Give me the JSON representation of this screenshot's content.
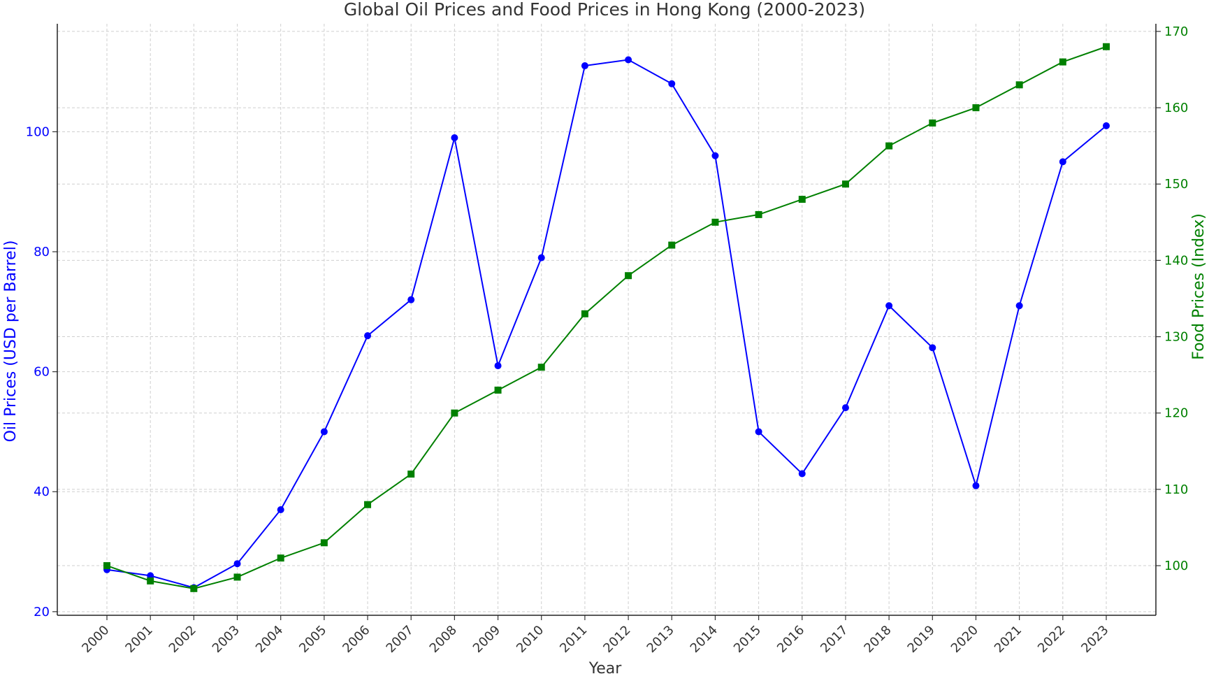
{
  "chart_data": {
    "type": "line",
    "title": "Global Oil Prices and Food Prices in Hong Kong (2000-2023)",
    "xlabel": "Year",
    "ylabel_left": "Oil Prices (USD per Barrel)",
    "ylabel_right": "Food Prices (Index)",
    "categories": [
      "2000",
      "2001",
      "2002",
      "2003",
      "2004",
      "2005",
      "2006",
      "2007",
      "2008",
      "2009",
      "2010",
      "2011",
      "2012",
      "2013",
      "2014",
      "2015",
      "2016",
      "2017",
      "2018",
      "2019",
      "2020",
      "2021",
      "2022",
      "2023"
    ],
    "series": [
      {
        "axis": "left",
        "color": "#0000ff",
        "marker": "circle",
        "values": [
          27,
          26,
          24,
          28,
          37,
          50,
          66,
          72,
          99,
          61,
          79,
          111,
          112,
          108,
          96,
          50,
          43,
          54,
          71,
          64,
          41,
          71,
          95,
          101
        ]
      },
      {
        "axis": "right",
        "color": "#008000",
        "marker": "square",
        "values": [
          100,
          98,
          97,
          98.5,
          101,
          103,
          108,
          112,
          120,
          123,
          126,
          133,
          138,
          142,
          145,
          146,
          148,
          150,
          155,
          158,
          160,
          163,
          166,
          168
        ]
      }
    ],
    "ylim_left": [
      19.4,
      118
    ],
    "yticks_left": [
      20,
      40,
      60,
      80,
      100
    ],
    "ylim_right": [
      93.5,
      171
    ],
    "yticks_right": [
      100,
      110,
      120,
      130,
      140,
      150,
      160,
      170
    ],
    "left_axis_color": "#0000ff",
    "right_axis_color": "#008000",
    "grid": true,
    "legend": "none"
  }
}
